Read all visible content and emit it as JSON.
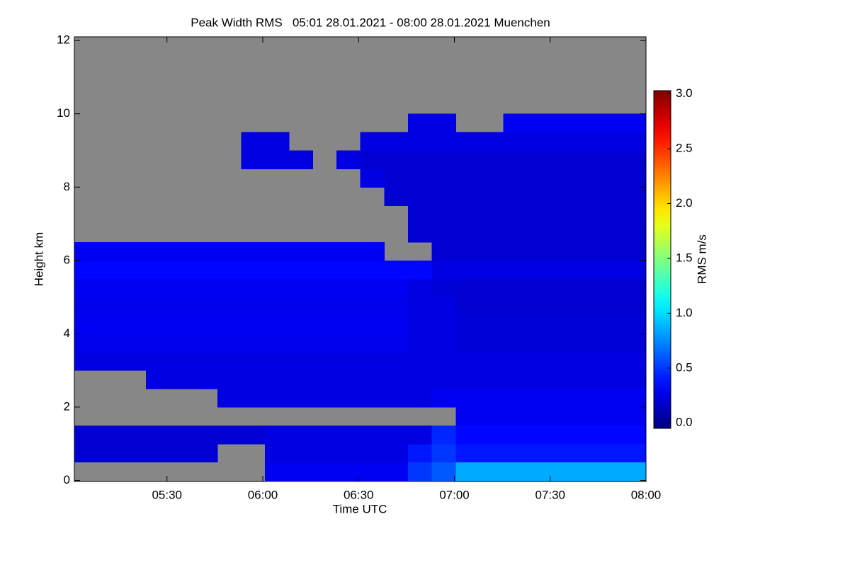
{
  "chart_data": {
    "type": "heatmap",
    "title": "Peak Width RMS   05:01 28.01.2021 - 08:00 28.01.2021 Muenchen",
    "x_label": "Time UTC",
    "y_label": "Height km",
    "colorbar_label": "RMS m/s",
    "colormap": "jet",
    "missing_color": "#878787",
    "xlim": [
      301,
      480
    ],
    "xticks": [
      {
        "value": 330,
        "label": "05:30"
      },
      {
        "value": 360,
        "label": "06:00"
      },
      {
        "value": 390,
        "label": "06:30"
      },
      {
        "value": 420,
        "label": "07:00"
      },
      {
        "value": 450,
        "label": "07:30"
      },
      {
        "value": 480,
        "label": "08:00"
      }
    ],
    "ylim": [
      -0.03,
      12.1
    ],
    "yticks": [
      0,
      2,
      4,
      6,
      8,
      10,
      12
    ],
    "clim": [
      -0.05,
      3.03
    ],
    "cticks": [
      {
        "value": 0,
        "label": "0.0"
      },
      {
        "value": 0.5,
        "label": "0.5"
      },
      {
        "value": 1,
        "label": "1.0"
      },
      {
        "value": 1.5,
        "label": "1.5"
      },
      {
        "value": 2,
        "label": "2.0"
      },
      {
        "value": 2.5,
        "label": "2.5"
      },
      {
        "value": 3,
        "label": "3.0"
      }
    ],
    "x": [
      304.7,
      312.2,
      319.6,
      327.1,
      334.6,
      342.0,
      349.5,
      357.0,
      364.4,
      371.9,
      379.4,
      386.8,
      394.3,
      401.8,
      409.2,
      416.7,
      424.2,
      431.6,
      439.1,
      446.6,
      454.0,
      461.5,
      469.0,
      476.4
    ],
    "y": [
      0.25,
      0.75,
      1.25,
      1.75,
      2.25,
      2.75,
      3.25,
      3.75,
      4.25,
      4.75,
      5.25,
      5.75,
      6.25,
      6.75,
      7.25,
      7.75,
      8.25,
      8.75,
      9.25,
      9.75,
      10.25,
      10.75,
      11.25,
      11.75
    ],
    "z": [
      [
        null,
        null,
        null,
        null,
        null,
        null,
        null,
        null,
        0.3,
        0.3,
        0.3,
        0.3,
        0.3,
        0.3,
        0.5,
        0.6,
        0.85,
        0.85,
        0.85,
        0.85,
        0.85,
        0.85,
        0.85,
        0.85
      ],
      [
        0.2,
        0.2,
        0.2,
        0.2,
        0.2,
        0.2,
        null,
        null,
        0.25,
        0.25,
        0.25,
        0.25,
        0.25,
        0.25,
        0.4,
        0.5,
        0.4,
        0.4,
        0.4,
        0.4,
        0.4,
        0.4,
        0.4,
        0.4
      ],
      [
        0.2,
        0.2,
        0.2,
        0.2,
        0.2,
        0.2,
        0.2,
        0.2,
        0.25,
        0.25,
        0.25,
        0.25,
        0.25,
        0.25,
        0.25,
        0.45,
        0.35,
        0.35,
        0.35,
        0.35,
        0.35,
        0.35,
        0.35,
        0.35
      ],
      [
        null,
        null,
        null,
        null,
        null,
        null,
        null,
        null,
        null,
        null,
        null,
        null,
        null,
        null,
        null,
        null,
        0.3,
        0.3,
        0.3,
        0.3,
        0.3,
        0.3,
        0.3,
        0.3
      ],
      [
        null,
        null,
        null,
        null,
        null,
        null,
        0.25,
        0.25,
        0.25,
        0.25,
        0.25,
        0.25,
        0.25,
        0.25,
        0.25,
        0.3,
        0.3,
        0.3,
        0.3,
        0.3,
        0.3,
        0.3,
        0.3,
        0.3
      ],
      [
        null,
        null,
        null,
        0.25,
        0.25,
        0.25,
        0.25,
        0.25,
        0.25,
        0.25,
        0.25,
        0.25,
        0.25,
        0.25,
        0.25,
        0.25,
        0.25,
        0.25,
        0.25,
        0.25,
        0.25,
        0.25,
        0.25,
        0.25
      ],
      [
        0.25,
        0.25,
        0.25,
        0.25,
        0.25,
        0.25,
        0.25,
        0.25,
        0.25,
        0.25,
        0.25,
        0.25,
        0.25,
        0.25,
        0.25,
        0.25,
        0.25,
        0.25,
        0.25,
        0.25,
        0.25,
        0.25,
        0.25,
        0.25
      ],
      [
        0.28,
        0.28,
        0.28,
        0.28,
        0.28,
        0.28,
        0.28,
        0.28,
        0.28,
        0.28,
        0.28,
        0.28,
        0.28,
        0.28,
        0.25,
        0.25,
        0.22,
        0.22,
        0.22,
        0.22,
        0.22,
        0.22,
        0.22,
        0.22
      ],
      [
        0.3,
        0.3,
        0.3,
        0.3,
        0.3,
        0.3,
        0.3,
        0.3,
        0.3,
        0.3,
        0.3,
        0.3,
        0.3,
        0.3,
        0.25,
        0.25,
        0.22,
        0.22,
        0.22,
        0.22,
        0.22,
        0.22,
        0.22,
        0.22
      ],
      [
        0.28,
        0.28,
        0.28,
        0.28,
        0.28,
        0.28,
        0.28,
        0.28,
        0.28,
        0.28,
        0.28,
        0.28,
        0.28,
        0.28,
        0.25,
        0.25,
        0.2,
        0.2,
        0.2,
        0.2,
        0.2,
        0.2,
        0.2,
        0.2
      ],
      [
        0.3,
        0.3,
        0.3,
        0.3,
        0.3,
        0.3,
        0.3,
        0.3,
        0.3,
        0.3,
        0.3,
        0.3,
        0.3,
        0.3,
        0.25,
        0.22,
        0.2,
        0.2,
        0.2,
        0.2,
        0.2,
        0.2,
        0.2,
        0.2
      ],
      [
        0.35,
        0.35,
        0.35,
        0.35,
        0.35,
        0.35,
        0.35,
        0.35,
        0.35,
        0.35,
        0.35,
        0.35,
        0.35,
        0.35,
        0.35,
        0.25,
        0.25,
        0.25,
        0.25,
        0.25,
        0.25,
        0.25,
        0.25,
        0.25
      ],
      [
        0.3,
        0.3,
        0.3,
        0.3,
        0.3,
        0.3,
        0.3,
        0.3,
        0.3,
        0.3,
        0.3,
        0.3,
        0.3,
        null,
        null,
        0.2,
        0.2,
        0.2,
        0.2,
        0.2,
        0.2,
        0.2,
        0.2,
        0.2
      ],
      [
        null,
        null,
        null,
        null,
        null,
        null,
        null,
        null,
        null,
        null,
        null,
        null,
        null,
        null,
        0.2,
        0.2,
        0.2,
        0.2,
        0.2,
        0.2,
        0.2,
        0.2,
        0.2,
        0.2
      ],
      [
        null,
        null,
        null,
        null,
        null,
        null,
        null,
        null,
        null,
        null,
        null,
        null,
        null,
        null,
        0.2,
        0.2,
        0.2,
        0.2,
        0.2,
        0.2,
        0.2,
        0.2,
        0.2,
        0.2
      ],
      [
        null,
        null,
        null,
        null,
        null,
        null,
        null,
        null,
        null,
        null,
        null,
        null,
        null,
        0.2,
        0.2,
        0.2,
        0.2,
        0.2,
        0.2,
        0.2,
        0.2,
        0.2,
        0.2,
        0.2
      ],
      [
        null,
        null,
        null,
        null,
        null,
        null,
        null,
        null,
        null,
        null,
        null,
        null,
        0.25,
        0.2,
        0.2,
        0.2,
        0.2,
        0.2,
        0.2,
        0.2,
        0.2,
        0.2,
        0.2,
        0.2
      ],
      [
        null,
        null,
        null,
        null,
        null,
        null,
        null,
        0.25,
        0.25,
        0.25,
        null,
        0.25,
        0.2,
        0.2,
        0.2,
        0.2,
        0.2,
        0.2,
        0.2,
        0.2,
        0.2,
        0.2,
        0.2,
        0.2
      ],
      [
        null,
        null,
        null,
        null,
        null,
        null,
        null,
        0.25,
        0.25,
        null,
        null,
        null,
        0.25,
        0.25,
        0.25,
        0.25,
        0.25,
        0.25,
        0.25,
        0.25,
        0.25,
        0.25,
        0.25,
        0.25
      ],
      [
        null,
        null,
        null,
        null,
        null,
        null,
        null,
        null,
        null,
        null,
        null,
        null,
        null,
        null,
        0.25,
        0.25,
        null,
        null,
        0.3,
        0.3,
        0.3,
        0.3,
        0.3,
        0.3
      ],
      [
        null,
        null,
        null,
        null,
        null,
        null,
        null,
        null,
        null,
        null,
        null,
        null,
        null,
        null,
        null,
        null,
        null,
        null,
        null,
        null,
        null,
        null,
        null,
        null
      ],
      [
        null,
        null,
        null,
        null,
        null,
        null,
        null,
        null,
        null,
        null,
        null,
        null,
        null,
        null,
        null,
        null,
        null,
        null,
        null,
        null,
        null,
        null,
        null,
        null
      ],
      [
        null,
        null,
        null,
        null,
        null,
        null,
        null,
        null,
        null,
        null,
        null,
        null,
        null,
        null,
        null,
        null,
        null,
        null,
        null,
        null,
        null,
        null,
        null,
        null
      ],
      [
        null,
        null,
        null,
        null,
        null,
        null,
        null,
        null,
        null,
        null,
        null,
        null,
        null,
        null,
        null,
        null,
        null,
        null,
        null,
        null,
        null,
        null,
        null,
        null
      ]
    ]
  }
}
